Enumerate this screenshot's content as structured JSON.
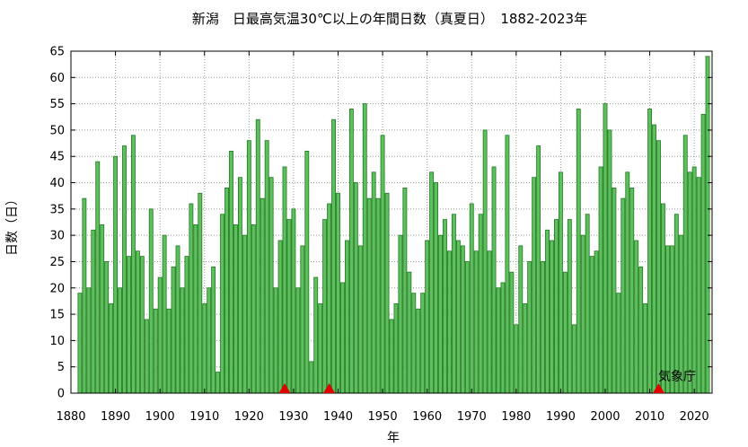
{
  "chart_data": {
    "type": "bar",
    "title": "新潟　日最高気温30℃以上の年間日数（真夏日）　1882-2023年",
    "xlabel": "年",
    "ylabel": "日数（日）",
    "source": "気象庁",
    "xlim": [
      1880,
      2024
    ],
    "ylim": [
      0,
      65
    ],
    "x_ticks": [
      1880,
      1890,
      1900,
      1910,
      1920,
      1930,
      1940,
      1950,
      1960,
      1970,
      1980,
      1990,
      2000,
      2010,
      2020
    ],
    "y_ticks": [
      0,
      5,
      10,
      15,
      20,
      25,
      30,
      35,
      40,
      45,
      50,
      55,
      60,
      65
    ],
    "grid": true,
    "bar_color": "#5fbf5f",
    "bar_edge_color": "#1e7a1e",
    "marker_color": "#e00000",
    "markers": [
      1928,
      1938,
      2012
    ],
    "years": [
      1882,
      1883,
      1884,
      1885,
      1886,
      1887,
      1888,
      1889,
      1890,
      1891,
      1892,
      1893,
      1894,
      1895,
      1896,
      1897,
      1898,
      1899,
      1900,
      1901,
      1902,
      1903,
      1904,
      1905,
      1906,
      1907,
      1908,
      1909,
      1910,
      1911,
      1912,
      1913,
      1914,
      1915,
      1916,
      1917,
      1918,
      1919,
      1920,
      1921,
      1922,
      1923,
      1924,
      1925,
      1926,
      1927,
      1928,
      1929,
      1930,
      1931,
      1932,
      1933,
      1934,
      1935,
      1936,
      1937,
      1938,
      1939,
      1940,
      1941,
      1942,
      1943,
      1944,
      1945,
      1946,
      1947,
      1948,
      1949,
      1950,
      1951,
      1952,
      1953,
      1954,
      1955,
      1956,
      1957,
      1958,
      1959,
      1960,
      1961,
      1962,
      1963,
      1964,
      1965,
      1966,
      1967,
      1968,
      1969,
      1970,
      1971,
      1972,
      1973,
      1974,
      1975,
      1976,
      1977,
      1978,
      1979,
      1980,
      1981,
      1982,
      1983,
      1984,
      1985,
      1986,
      1987,
      1988,
      1989,
      1990,
      1991,
      1992,
      1993,
      1994,
      1995,
      1996,
      1997,
      1998,
      1999,
      2000,
      2001,
      2002,
      2003,
      2004,
      2005,
      2006,
      2007,
      2008,
      2009,
      2010,
      2011,
      2012,
      2013,
      2014,
      2015,
      2016,
      2017,
      2018,
      2019,
      2020,
      2021,
      2022,
      2023
    ],
    "values": [
      19,
      37,
      20,
      31,
      44,
      32,
      25,
      17,
      45,
      20,
      47,
      26,
      49,
      27,
      26,
      14,
      35,
      16,
      22,
      30,
      16,
      24,
      28,
      20,
      26,
      36,
      32,
      38,
      17,
      20,
      24,
      4,
      34,
      39,
      46,
      32,
      41,
      30,
      48,
      32,
      52,
      37,
      48,
      41,
      20,
      29,
      43,
      33,
      35,
      20,
      28,
      46,
      6,
      22,
      17,
      33,
      36,
      52,
      38,
      21,
      29,
      54,
      40,
      28,
      55,
      37,
      42,
      37,
      49,
      38,
      14,
      17,
      30,
      39,
      23,
      19,
      16,
      19,
      29,
      42,
      40,
      30,
      33,
      27,
      34,
      29,
      28,
      25,
      36,
      27,
      34,
      50,
      27,
      43,
      20,
      21,
      49,
      23,
      13,
      28,
      17,
      25,
      41,
      47,
      25,
      31,
      29,
      33,
      42,
      23,
      33,
      13,
      54,
      30,
      34,
      26,
      27,
      43,
      55,
      50,
      39,
      19,
      37,
      42,
      39,
      29,
      24,
      17,
      54,
      51,
      48,
      36,
      28,
      28,
      34,
      30,
      49,
      42,
      43,
      41,
      53,
      64
    ]
  }
}
